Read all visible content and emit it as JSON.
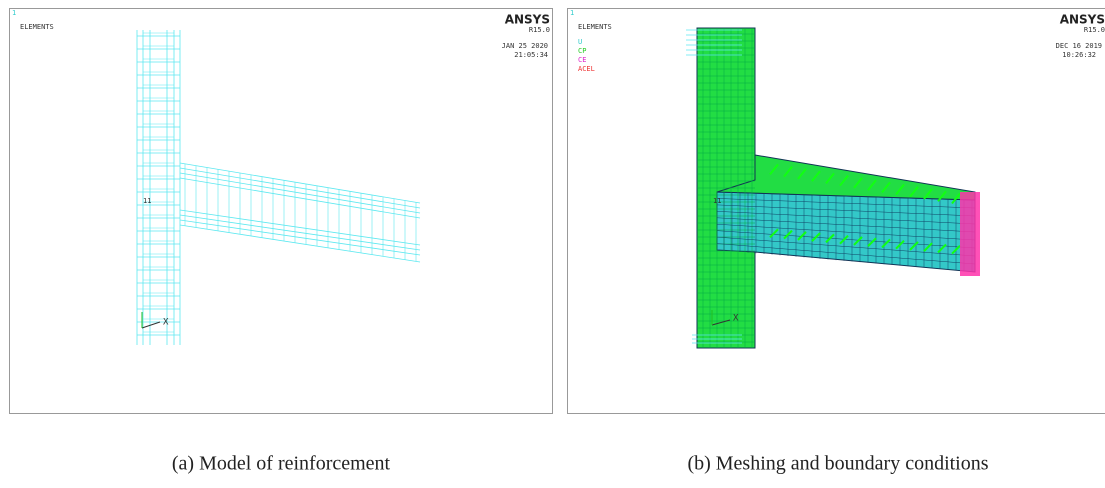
{
  "panels": [
    {
      "label": "1",
      "title": "ELEMENTS",
      "logo": "ANSYS",
      "version": "R15.0",
      "date": "JAN 25 2020",
      "time": "21:05:34",
      "node_label": "11",
      "axis_label": "X",
      "caption": "(a) Model of reinforcement"
    },
    {
      "label": "1",
      "title": "ELEMENTS",
      "legend": [
        "U",
        "CP",
        "CE",
        "ACEL"
      ],
      "logo": "ANSYS",
      "version": "R15.0",
      "date": "DEC 16 2019",
      "time": "10:26:32",
      "node_label": "11",
      "axis_label": "X",
      "caption": "(b) Meshing and boundary conditions"
    }
  ]
}
